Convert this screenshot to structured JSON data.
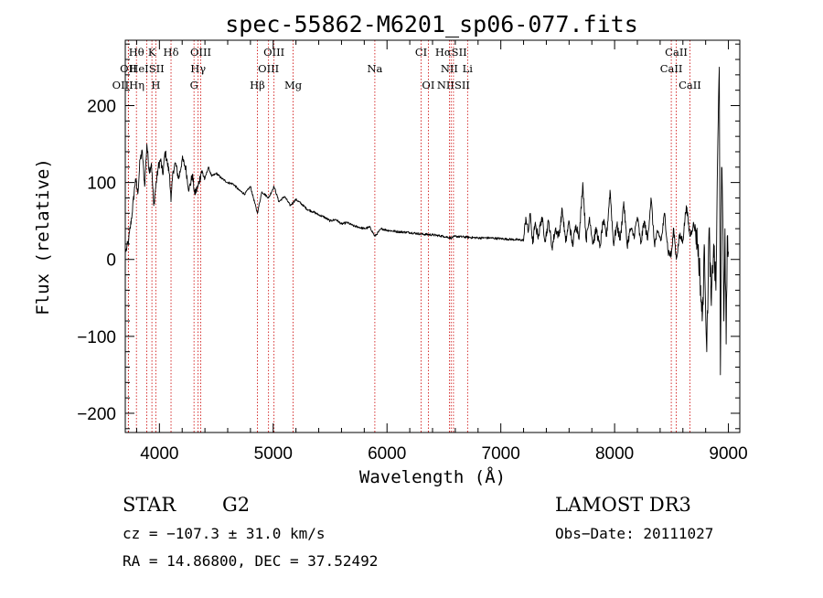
{
  "chart_data": {
    "type": "line",
    "title": "spec-55862-M6201_sp06-077.fits",
    "xlabel": "Wavelength (Å)",
    "ylabel": "Flux (relative)",
    "xlim": [
      3700,
      9100
    ],
    "ylim": [
      -225,
      285
    ],
    "x_ticks": [
      4000,
      5000,
      6000,
      7000,
      8000,
      9000
    ],
    "x_tick_labels": [
      "4000",
      "5000",
      "6000",
      "7000",
      "8000",
      "9000"
    ],
    "y_ticks": [
      200,
      100,
      0,
      -100,
      -200
    ],
    "y_tick_labels": [
      "200",
      "100",
      "0",
      "−100",
      "−200"
    ],
    "grid": false,
    "series": [
      {
        "name": "flux",
        "x": [
          3705,
          3730,
          3760,
          3790,
          3810,
          3830,
          3850,
          3870,
          3890,
          3910,
          3930,
          3950,
          3968,
          3990,
          4010,
          4030,
          4050,
          4070,
          4090,
          4102,
          4120,
          4140,
          4170,
          4200,
          4230,
          4260,
          4290,
          4310,
          4340,
          4370,
          4400,
          4430,
          4460,
          4500,
          4550,
          4600,
          4650,
          4700,
          4750,
          4800,
          4861,
          4900,
          4960,
          5007,
          5050,
          5100,
          5150,
          5200,
          5250,
          5300,
          5350,
          5400,
          5450,
          5500,
          5550,
          5600,
          5650,
          5700,
          5750,
          5800,
          5850,
          5893,
          5950,
          6000,
          6100,
          6200,
          6300,
          6400,
          6500,
          6563,
          6600,
          6700,
          6800,
          6900,
          7000,
          7100,
          7200,
          7220,
          7240,
          7260,
          7280,
          7300,
          7330,
          7360,
          7390,
          7420,
          7450,
          7480,
          7510,
          7540,
          7570,
          7600,
          7630,
          7660,
          7690,
          7720,
          7750,
          7780,
          7810,
          7840,
          7870,
          7900,
          7930,
          7960,
          7990,
          8020,
          8050,
          8080,
          8110,
          8140,
          8170,
          8200,
          8230,
          8260,
          8290,
          8320,
          8350,
          8380,
          8410,
          8440,
          8470,
          8498,
          8520,
          8542,
          8570,
          8600,
          8630,
          8662,
          8690,
          8710,
          8730,
          8750,
          8770,
          8790,
          8810,
          8830,
          8850,
          8870,
          8890,
          8910,
          8920,
          8930,
          8940,
          8950,
          8960,
          8970,
          8980,
          8990,
          9000
        ],
        "y": [
          10,
          25,
          60,
          105,
          85,
          130,
          140,
          95,
          150,
          115,
          125,
          70,
          95,
          120,
          130,
          110,
          140,
          125,
          110,
          75,
          115,
          125,
          105,
          130,
          120,
          90,
          110,
          85,
          95,
          115,
          105,
          120,
          108,
          112,
          105,
          100,
          98,
          90,
          85,
          95,
          60,
          88,
          80,
          95,
          75,
          82,
          70,
          78,
          72,
          65,
          62,
          58,
          55,
          50,
          52,
          46,
          48,
          44,
          42,
          40,
          42,
          30,
          40,
          38,
          36,
          35,
          33,
          32,
          30,
          28,
          30,
          29,
          28,
          28,
          27,
          26,
          25,
          55,
          35,
          60,
          20,
          45,
          30,
          55,
          25,
          50,
          15,
          40,
          30,
          65,
          22,
          50,
          18,
          45,
          30,
          100,
          25,
          55,
          20,
          40,
          15,
          50,
          30,
          90,
          20,
          45,
          25,
          75,
          18,
          40,
          30,
          55,
          20,
          50,
          25,
          80,
          20,
          35,
          25,
          60,
          10,
          5,
          40,
          0,
          30,
          25,
          70,
          30,
          45,
          40,
          20,
          -20,
          -80,
          15,
          -120,
          40,
          -60,
          20,
          -40,
          180,
          250,
          -150,
          120,
          60,
          -80,
          40,
          -110,
          30,
          10
        ]
      }
    ],
    "spectral_lines": [
      {
        "name": "Hθ",
        "wl": 3798,
        "row": 0
      },
      {
        "name": "K",
        "wl": 3934,
        "row": 0
      },
      {
        "name": "Hδ",
        "wl": 4102,
        "row": 0
      },
      {
        "name": "OIII",
        "wl": 4363,
        "row": 0
      },
      {
        "name": "OIII",
        "wl": 5007,
        "row": 0
      },
      {
        "name": "CI",
        "wl": 6300,
        "row": 0
      },
      {
        "name": "HαSII",
        "wl": 6563,
        "row": 0
      },
      {
        "name": "CaII",
        "wl": 8542,
        "row": 0
      },
      {
        "name": "OII",
        "wl": 3727,
        "row": 1
      },
      {
        "name": "HeISII",
        "wl": 3889,
        "row": 1
      },
      {
        "name": "Hγ",
        "wl": 4340,
        "row": 1
      },
      {
        "name": "OIII",
        "wl": 4959,
        "row": 1
      },
      {
        "name": "Na",
        "wl": 5893,
        "row": 1
      },
      {
        "name": "NII",
        "wl": 6548,
        "row": 1
      },
      {
        "name": "Li",
        "wl": 6708,
        "row": 1
      },
      {
        "name": "CaII",
        "wl": 8498,
        "row": 1
      },
      {
        "name": "OIIHη",
        "wl": 3727,
        "row": 2
      },
      {
        "name": "H",
        "wl": 3968,
        "row": 2
      },
      {
        "name": "G",
        "wl": 4304,
        "row": 2
      },
      {
        "name": "Hβ",
        "wl": 4861,
        "row": 2
      },
      {
        "name": "Mg",
        "wl": 5175,
        "row": 2
      },
      {
        "name": "OI",
        "wl": 6363,
        "row": 2
      },
      {
        "name": "NIISII",
        "wl": 6584,
        "row": 2
      },
      {
        "name": "CaII",
        "wl": 8662,
        "row": 2
      }
    ],
    "line_marker_color": "#cc0000"
  },
  "info": {
    "class": "STAR",
    "subclass": "G2",
    "survey": "LAMOST DR3",
    "cz": "cz = −107.3 ± 31.0 km/s",
    "obs_date": "Obs−Date: 20111027",
    "radec": "RA =  14.86800, DEC =  37.52492"
  }
}
